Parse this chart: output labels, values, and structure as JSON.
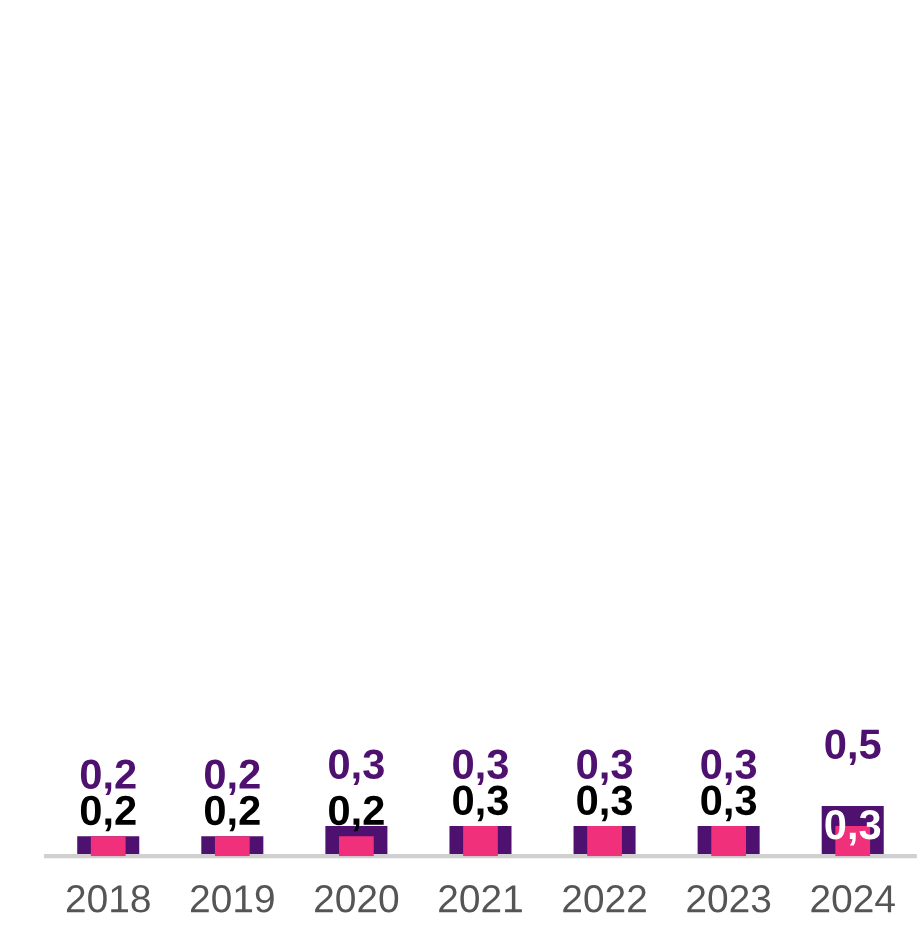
{
  "chart_data": {
    "type": "bar",
    "categories": [
      "2018",
      "2019",
      "2020",
      "2021",
      "2022",
      "2023",
      "2024"
    ],
    "series": [
      {
        "color": "#4f1170",
        "values": [
          0.2,
          0.2,
          0.3,
          0.3,
          0.3,
          0.3,
          0.5
        ],
        "value_labels": [
          "0,2",
          "0,2",
          "0,3",
          "0,3",
          "0,3",
          "0,3",
          "0,5"
        ]
      },
      {
        "color": "#f0307a",
        "values": [
          0.2,
          0.2,
          0.2,
          0.3,
          0.3,
          0.3,
          0.3
        ],
        "value_labels": [
          "0,2",
          "0,2",
          "0,2",
          "0,3",
          "0,3",
          "0,3",
          "0,3"
        ]
      }
    ],
    "tick_labels": "x",
    "grid": false
  }
}
